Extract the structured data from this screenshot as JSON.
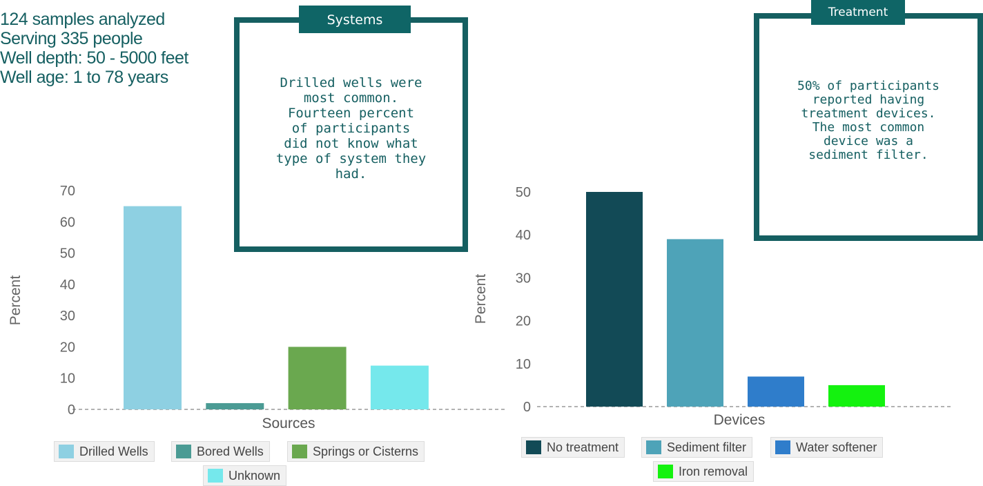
{
  "stats": [
    "124 samples analyzed",
    "Serving 335 people",
    "Well depth: 50 - 5000 feet",
    "Well age: 1 to 78 years"
  ],
  "systems_box": {
    "tab": "Systems",
    "text": "Drilled wells were\nmost common.\nFourteen percent\nof participants\ndid not know what\ntype of system they\nhad."
  },
  "treatment_box": {
    "tab": "Treatment",
    "text": "50% of participants\nreported having\ntreatment devices.\nThe most common\ndevice was a\nsediment filter."
  },
  "colors": {
    "accent": "#155f61",
    "tab_bg": "#0f6566"
  },
  "chart_data": [
    {
      "type": "bar",
      "xlabel": "Sources",
      "ylabel": "Percent",
      "ylim": [
        0,
        70
      ],
      "yticks": [
        0,
        10,
        20,
        30,
        40,
        50,
        60,
        70
      ],
      "categories": [
        "Drilled Wells",
        "Bored Wells",
        "Springs or Cisterns",
        "Unknown"
      ],
      "values": [
        65,
        2,
        20,
        14
      ],
      "colors": [
        "#8ed0e2",
        "#4b9b94",
        "#6aa84f",
        "#75e8ec"
      ],
      "legend": "bottom"
    },
    {
      "type": "bar",
      "xlabel": "Devices",
      "ylabel": "Percent",
      "ylim": [
        0,
        50
      ],
      "yticks": [
        0,
        10,
        20,
        30,
        40,
        50
      ],
      "categories": [
        "No treatment",
        "Sediment filter",
        "Water softener",
        "Iron removal"
      ],
      "values": [
        50,
        39,
        7,
        5
      ],
      "colors": [
        "#124a56",
        "#4ea3b8",
        "#2f7dcb",
        "#14f20f"
      ],
      "legend": "bottom"
    }
  ]
}
